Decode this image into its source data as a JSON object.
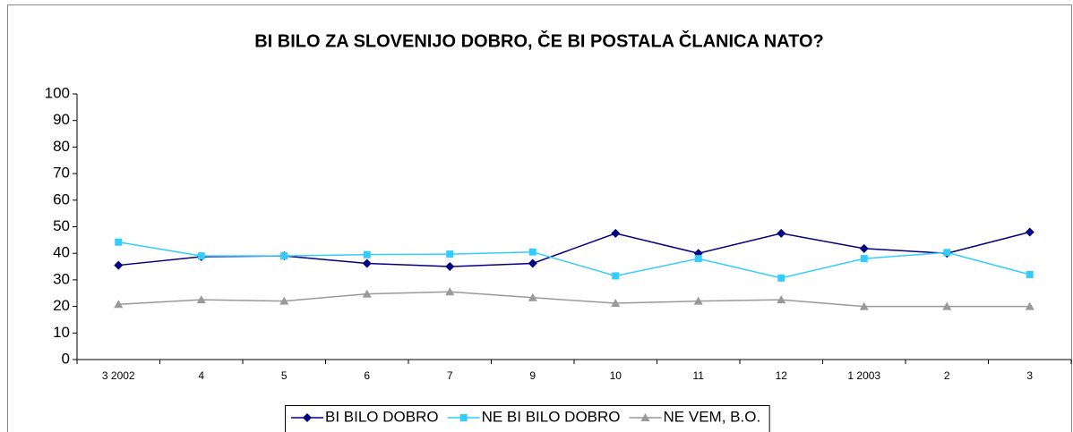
{
  "chart_data": {
    "type": "line",
    "title": "BI BILO ZA SLOVENIJO DOBRO, ČE BI POSTALA ČLANICA NATO?",
    "categories": [
      "3 2002",
      "4",
      "5",
      "6",
      "7",
      "9",
      "10",
      "11",
      "12",
      "1 2003",
      "2",
      "3"
    ],
    "series": [
      {
        "name": "BI BILO DOBRO",
        "color": "#000080",
        "marker": "diamond",
        "values": [
          35.5,
          38.7,
          39,
          36.2,
          35,
          36.2,
          47.5,
          40,
          47.5,
          41.8,
          40,
          48
        ]
      },
      {
        "name": "NE BI BILO DOBRO",
        "color": "#33ccff",
        "marker": "square",
        "values": [
          44.2,
          39,
          39,
          39.5,
          39.7,
          40.5,
          31.5,
          38,
          30.7,
          38,
          40.3,
          32
        ]
      },
      {
        "name": "NE VEM, B.O.",
        "color": "#999999",
        "marker": "triangle",
        "values": [
          20.8,
          22.5,
          22,
          24.7,
          25.5,
          23.3,
          21.2,
          22,
          22.5,
          20,
          20,
          20
        ]
      }
    ],
    "ylim": [
      0,
      100
    ],
    "yticks": [
      0,
      10,
      20,
      30,
      40,
      50,
      60,
      70,
      80,
      90,
      100
    ],
    "grid": false
  }
}
